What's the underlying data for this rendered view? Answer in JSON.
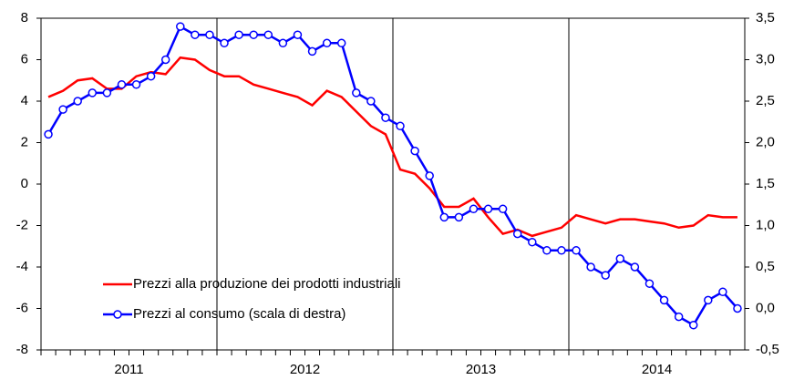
{
  "chart_data": {
    "type": "line",
    "categories": [
      "2011",
      null,
      null,
      null,
      null,
      null,
      null,
      null,
      null,
      null,
      null,
      null,
      "2012",
      null,
      null,
      null,
      null,
      null,
      null,
      null,
      null,
      null,
      null,
      null,
      "2013",
      null,
      null,
      null,
      null,
      null,
      null,
      null,
      null,
      null,
      null,
      null,
      "2014",
      null,
      null,
      null,
      null,
      null,
      null,
      null,
      null,
      null,
      null,
      null
    ],
    "series": [
      {
        "name": "Prezzi alla produzione dei prodotti industriali",
        "color": "#ff0000",
        "axis": "y",
        "values": [
          4.2,
          4.5,
          5.0,
          5.1,
          4.6,
          4.6,
          5.2,
          5.4,
          5.3,
          6.1,
          6.0,
          5.5,
          5.2,
          5.2,
          4.8,
          4.6,
          4.4,
          4.2,
          3.8,
          4.5,
          4.2,
          3.5,
          2.8,
          2.4,
          0.7,
          0.5,
          -0.2,
          -1.1,
          -1.1,
          -0.7,
          -1.6,
          -2.4,
          -2.2,
          -2.5,
          -2.3,
          -2.1,
          -1.5,
          -1.7,
          -1.9,
          -1.7,
          -1.7,
          -1.8,
          -1.9,
          -2.1,
          -2.0,
          -1.5,
          -1.6,
          -1.6
        ]
      },
      {
        "name": "Prezzi al consumo (scala di destra)",
        "color": "#0000ff",
        "axis": "y2",
        "marker": "circle",
        "values": [
          2.1,
          2.4,
          2.5,
          2.6,
          2.6,
          2.7,
          2.7,
          2.8,
          3.0,
          3.4,
          3.3,
          3.3,
          3.2,
          3.3,
          3.3,
          3.3,
          3.2,
          3.3,
          3.1,
          3.2,
          3.2,
          2.6,
          2.5,
          2.3,
          2.2,
          1.9,
          1.6,
          1.1,
          1.1,
          1.2,
          1.2,
          1.2,
          0.9,
          0.8,
          0.7,
          0.7,
          0.7,
          0.5,
          0.4,
          0.6,
          0.5,
          0.3,
          0.1,
          -0.1,
          -0.2,
          0.1,
          0.2,
          0.0
        ]
      }
    ],
    "ylim": [
      -8,
      8
    ],
    "yticks": [
      -8,
      -6,
      -4,
      -2,
      0,
      2,
      4,
      6,
      8
    ],
    "y2lim": [
      -0.5,
      3.5
    ],
    "y2ticks": [
      {
        "value": -0.5,
        "label": "-0,5"
      },
      {
        "value": 0,
        "label": "0,0"
      },
      {
        "value": 0.5,
        "label": "0,5"
      },
      {
        "value": 1,
        "label": "1,0"
      },
      {
        "value": 1.5,
        "label": "1,5"
      },
      {
        "value": 2,
        "label": "2,0"
      },
      {
        "value": 2.5,
        "label": "2,5"
      },
      {
        "value": 3,
        "label": "3,0"
      },
      {
        "value": 3.5,
        "label": "3,5"
      }
    ],
    "legend": "lower left"
  }
}
